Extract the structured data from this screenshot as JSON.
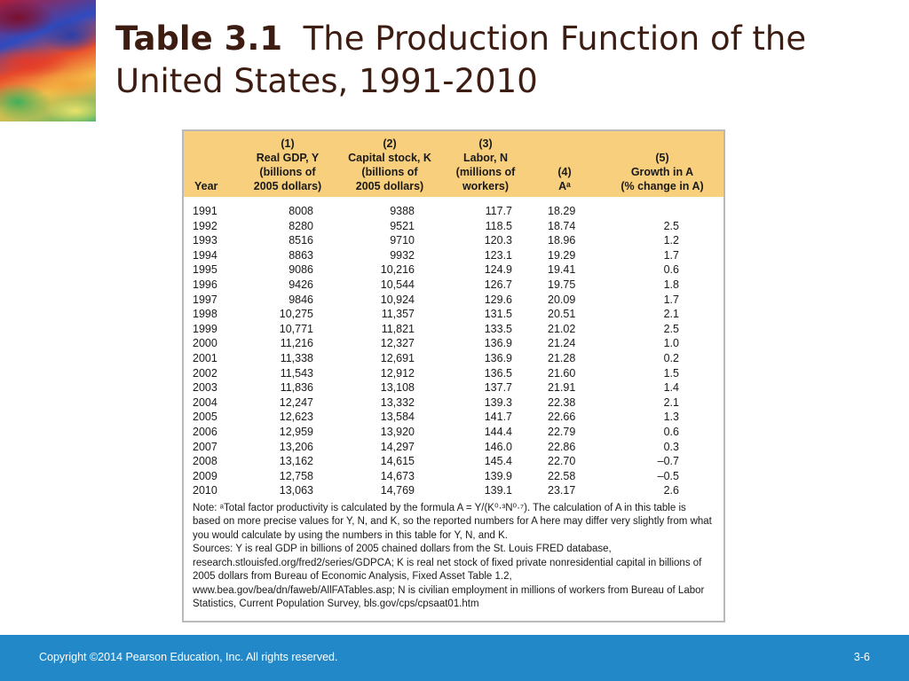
{
  "slide": {
    "title_number": "Table 3.1",
    "title_text": "The Production Function of the United States, 1991-2010"
  },
  "table": {
    "headers": [
      {
        "num": "",
        "lines": [
          "Year"
        ]
      },
      {
        "num": "(1)",
        "lines": [
          "Real GDP, Y",
          "(billions of",
          "2005 dollars)"
        ]
      },
      {
        "num": "(2)",
        "lines": [
          "Capital stock, K",
          "(billions of",
          "2005 dollars)"
        ]
      },
      {
        "num": "(3)",
        "lines": [
          "Labor, N",
          "(millions of",
          "workers)"
        ]
      },
      {
        "num": "(4)",
        "lines": [
          "Aᵃ"
        ]
      },
      {
        "num": "(5)",
        "lines": [
          "Growth in A",
          "(% change in A)"
        ]
      }
    ],
    "rows": [
      [
        "1991",
        "8008",
        "9388",
        "117.7",
        "18.29",
        ""
      ],
      [
        "1992",
        "8280",
        "9521",
        "118.5",
        "18.74",
        "2.5"
      ],
      [
        "1993",
        "8516",
        "9710",
        "120.3",
        "18.96",
        "1.2"
      ],
      [
        "1994",
        "8863",
        "9932",
        "123.1",
        "19.29",
        "1.7"
      ],
      [
        "1995",
        "9086",
        "10,216",
        "124.9",
        "19.41",
        "0.6"
      ],
      [
        "1996",
        "9426",
        "10,544",
        "126.7",
        "19.75",
        "1.8"
      ],
      [
        "1997",
        "9846",
        "10,924",
        "129.6",
        "20.09",
        "1.7"
      ],
      [
        "1998",
        "10,275",
        "11,357",
        "131.5",
        "20.51",
        "2.1"
      ],
      [
        "1999",
        "10,771",
        "11,821",
        "133.5",
        "21.02",
        "2.5"
      ],
      [
        "2000",
        "11,216",
        "12,327",
        "136.9",
        "21.24",
        "1.0"
      ],
      [
        "2001",
        "11,338",
        "12,691",
        "136.9",
        "21.28",
        "0.2"
      ],
      [
        "2002",
        "11,543",
        "12,912",
        "136.5",
        "21.60",
        "1.5"
      ],
      [
        "2003",
        "11,836",
        "13,108",
        "137.7",
        "21.91",
        "1.4"
      ],
      [
        "2004",
        "12,247",
        "13,332",
        "139.3",
        "22.38",
        "2.1"
      ],
      [
        "2005",
        "12,623",
        "13,584",
        "141.7",
        "22.66",
        "1.3"
      ],
      [
        "2006",
        "12,959",
        "13,920",
        "144.4",
        "22.79",
        "0.6"
      ],
      [
        "2007",
        "13,206",
        "14,297",
        "146.0",
        "22.86",
        "0.3"
      ],
      [
        "2008",
        "13,162",
        "14,615",
        "145.4",
        "22.70",
        "–0.7"
      ],
      [
        "2009",
        "12,758",
        "14,673",
        "139.9",
        "22.58",
        "–0.5"
      ],
      [
        "2010",
        "13,063",
        "14,769",
        "139.1",
        "23.17",
        "2.6"
      ]
    ],
    "note": "Note: ᵃTotal factor productivity is calculated by the formula A = Y/(K⁰·³N⁰·⁷). The calculation of A in this table is based on more precise values for Y, N, and K, so the reported numbers for A here may differ very slightly from what you would calculate by using the numbers in this table for Y, N, and K.",
    "sources": "Sources: Y is real GDP in billions of 2005 chained dollars from the St. Louis FRED database, research.stlouisfed.org/fred2/series/GDPCA; K is real net stock of fixed private nonresidential capital in billions of 2005 dollars from Bureau of Economic Analysis, Fixed Asset Table 1.2, www.bea.gov/bea/dn/faweb/AllFATables.asp; N is civilian employment in millions of workers from Bureau of Labor Statistics, Current Population Survey, bls.gov/cps/cpsaat01.htm"
  },
  "footer": {
    "copyright": "Copyright ©2014 Pearson Education, Inc. All rights reserved.",
    "page": "3-6"
  },
  "colors": {
    "header_bg": "#f8cf7c",
    "footer_bg": "#2288c8",
    "title_color": "#3d1c12"
  }
}
